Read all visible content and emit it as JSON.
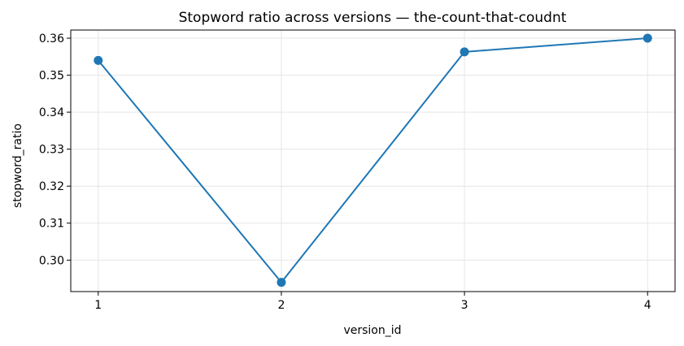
{
  "chart_data": {
    "type": "line",
    "title": "Stopword ratio across versions — the-count-that-coudnt",
    "xlabel": "version_id",
    "ylabel": "stopword_ratio",
    "x": [
      1,
      2,
      3,
      4
    ],
    "xticks": [
      "1",
      "2",
      "3",
      "4"
    ],
    "yticks": [
      0.3,
      0.31,
      0.32,
      0.33,
      0.34,
      0.35,
      0.36
    ],
    "ylim": [
      0.2915,
      0.3622
    ],
    "xlim": [
      0.85,
      4.15
    ],
    "grid": true,
    "series": [
      {
        "values": [
          0.354,
          0.294,
          0.3563,
          0.36
        ]
      }
    ],
    "colors": {
      "line": "#1f77b4",
      "grid": "#e6e6e6",
      "axis": "#000000"
    }
  }
}
